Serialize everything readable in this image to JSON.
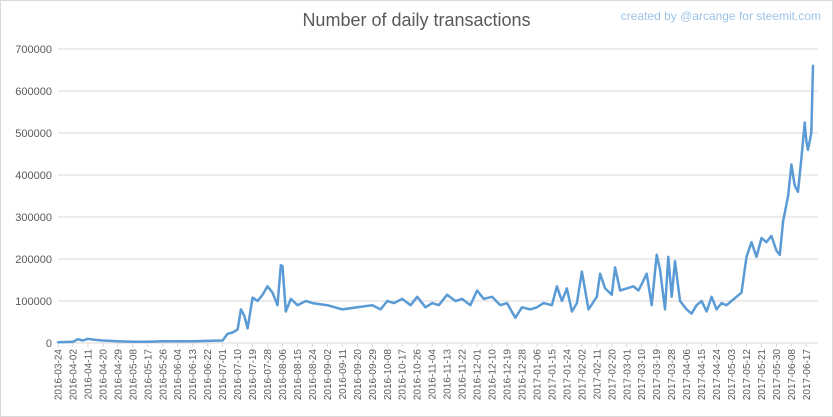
{
  "title": "Number of daily transactions",
  "credit": "created by @arcange for steemit.com",
  "colors": {
    "line": "#5b9bd5",
    "grid": "#d9d9d9",
    "text": "#595959",
    "credit": "#9dc3e6"
  },
  "chart_data": {
    "type": "line",
    "title": "Number of daily transactions",
    "xlabel": "",
    "ylabel": "",
    "ylim": [
      0,
      700000
    ],
    "xlim": [
      "2016-03-24",
      "2017-06-24"
    ],
    "grid": true,
    "legend": "none",
    "y_ticks": [
      "0",
      "100000",
      "200000",
      "300000",
      "400000",
      "500000",
      "600000",
      "700000"
    ],
    "x_ticks": [
      "2016-03-24",
      "2016-04-02",
      "2016-04-11",
      "2016-04-20",
      "2016-04-29",
      "2016-05-08",
      "2016-05-17",
      "2016-05-26",
      "2016-06-04",
      "2016-06-13",
      "2016-06-22",
      "2016-07-01",
      "2016-07-10",
      "2016-07-19",
      "2016-07-28",
      "2016-08-06",
      "2016-08-15",
      "2016-08-24",
      "2016-09-02",
      "2016-09-11",
      "2016-09-20",
      "2016-09-29",
      "2016-10-08",
      "2016-10-17",
      "2016-10-26",
      "2016-11-04",
      "2016-11-13",
      "2016-11-22",
      "2016-12-01",
      "2016-12-10",
      "2016-12-19",
      "2016-12-28",
      "2017-01-06",
      "2017-01-15",
      "2017-01-24",
      "2017-02-02",
      "2017-02-11",
      "2017-02-20",
      "2017-03-01",
      "2017-03-10",
      "2017-03-19",
      "2017-03-28",
      "2017-04-06",
      "2017-04-15",
      "2017-04-24",
      "2017-05-03",
      "2017-05-12",
      "2017-05-21",
      "2017-05-30",
      "2017-06-08",
      "2017-06-17"
    ],
    "series": [
      {
        "color": "#5b9bd5",
        "x": [
          "2016-03-24",
          "2016-04-02",
          "2016-04-05",
          "2016-04-08",
          "2016-04-11",
          "2016-04-14",
          "2016-04-20",
          "2016-04-29",
          "2016-05-08",
          "2016-05-17",
          "2016-05-26",
          "2016-06-04",
          "2016-06-13",
          "2016-06-22",
          "2016-07-01",
          "2016-07-04",
          "2016-07-07",
          "2016-07-10",
          "2016-07-12",
          "2016-07-14",
          "2016-07-16",
          "2016-07-19",
          "2016-07-22",
          "2016-07-25",
          "2016-07-28",
          "2016-07-31",
          "2016-08-03",
          "2016-08-05",
          "2016-08-06",
          "2016-08-08",
          "2016-08-11",
          "2016-08-15",
          "2016-08-20",
          "2016-08-24",
          "2016-09-02",
          "2016-09-11",
          "2016-09-20",
          "2016-09-29",
          "2016-10-04",
          "2016-10-08",
          "2016-10-12",
          "2016-10-17",
          "2016-10-22",
          "2016-10-26",
          "2016-10-31",
          "2016-11-04",
          "2016-11-08",
          "2016-11-13",
          "2016-11-18",
          "2016-11-22",
          "2016-11-27",
          "2016-12-01",
          "2016-12-05",
          "2016-12-10",
          "2016-12-15",
          "2016-12-19",
          "2016-12-24",
          "2016-12-28",
          "2017-01-02",
          "2017-01-06",
          "2017-01-10",
          "2017-01-15",
          "2017-01-18",
          "2017-01-21",
          "2017-01-24",
          "2017-01-27",
          "2017-01-30",
          "2017-02-02",
          "2017-02-06",
          "2017-02-11",
          "2017-02-13",
          "2017-02-16",
          "2017-02-20",
          "2017-02-22",
          "2017-02-25",
          "2017-03-01",
          "2017-03-05",
          "2017-03-08",
          "2017-03-10",
          "2017-03-13",
          "2017-03-16",
          "2017-03-19",
          "2017-03-21",
          "2017-03-24",
          "2017-03-26",
          "2017-03-28",
          "2017-03-30",
          "2017-04-02",
          "2017-04-06",
          "2017-04-09",
          "2017-04-12",
          "2017-04-15",
          "2017-04-18",
          "2017-04-21",
          "2017-04-24",
          "2017-04-27",
          "2017-04-30",
          "2017-05-03",
          "2017-05-06",
          "2017-05-09",
          "2017-05-12",
          "2017-05-15",
          "2017-05-18",
          "2017-05-21",
          "2017-05-24",
          "2017-05-27",
          "2017-05-30",
          "2017-06-01",
          "2017-06-03",
          "2017-06-06",
          "2017-06-08",
          "2017-06-10",
          "2017-06-12",
          "2017-06-14",
          "2017-06-16",
          "2017-06-17",
          "2017-06-18",
          "2017-06-20",
          "2017-06-21"
        ],
        "y": [
          2000,
          3000,
          9000,
          6000,
          10000,
          8000,
          6000,
          4000,
          3000,
          3000,
          4000,
          4000,
          4000,
          5000,
          6000,
          22000,
          25000,
          32000,
          80000,
          65000,
          35000,
          108000,
          100000,
          115000,
          135000,
          120000,
          90000,
          185000,
          183000,
          75000,
          105000,
          90000,
          100000,
          95000,
          90000,
          80000,
          85000,
          90000,
          80000,
          100000,
          95000,
          105000,
          90000,
          110000,
          85000,
          95000,
          90000,
          115000,
          100000,
          105000,
          90000,
          125000,
          105000,
          110000,
          90000,
          95000,
          60000,
          85000,
          80000,
          85000,
          95000,
          90000,
          135000,
          100000,
          130000,
          75000,
          95000,
          170000,
          80000,
          110000,
          165000,
          130000,
          115000,
          180000,
          125000,
          130000,
          135000,
          125000,
          140000,
          165000,
          90000,
          210000,
          175000,
          80000,
          205000,
          110000,
          195000,
          100000,
          80000,
          70000,
          90000,
          100000,
          75000,
          110000,
          80000,
          95000,
          90000,
          100000,
          110000,
          120000,
          205000,
          240000,
          205000,
          250000,
          240000,
          255000,
          220000,
          210000,
          290000,
          350000,
          425000,
          375000,
          360000,
          440000,
          525000,
          480000,
          460000,
          500000,
          660000
        ]
      }
    ]
  }
}
